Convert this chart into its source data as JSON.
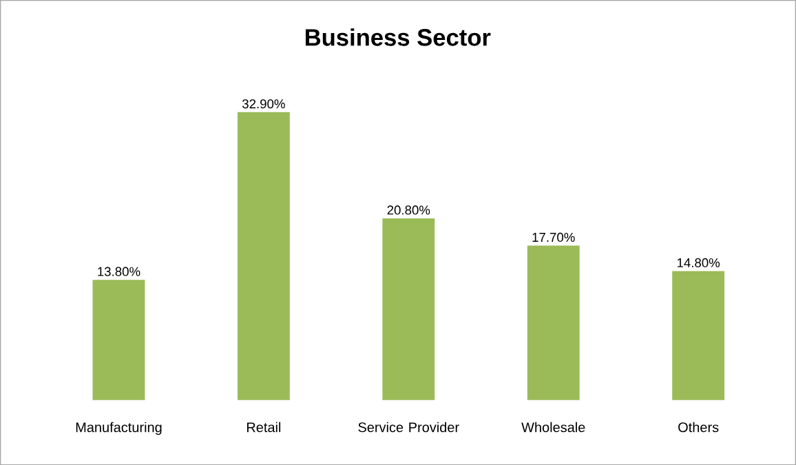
{
  "chart_data": {
    "type": "bar",
    "title": "Business Sector",
    "categories": [
      "Manufacturing",
      "Retail",
      "Service Provider",
      "Wholesale",
      "Others"
    ],
    "values": [
      13.8,
      32.9,
      20.8,
      17.7,
      14.8
    ],
    "value_labels": [
      "13.80%",
      "32.90%",
      "20.80%",
      "17.70%",
      "14.80%"
    ],
    "color": "#9bbb59"
  }
}
